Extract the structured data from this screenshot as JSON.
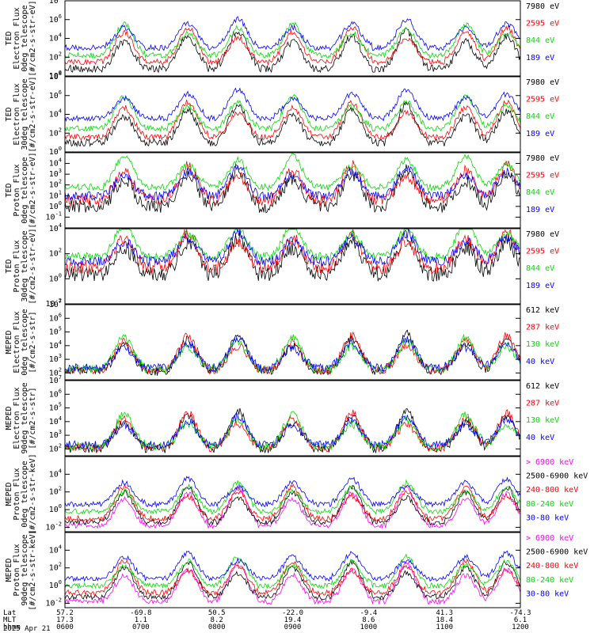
{
  "figure": {
    "time_axis": {
      "rows": [
        {
          "label": "Lat",
          "values": [
            "57.2",
            "-69.8",
            "50.5",
            "-22.0",
            "-9.4",
            "41.3",
            "-74.3"
          ]
        },
        {
          "label": "MLT",
          "values": [
            "17.3",
            "1.1",
            "8.2",
            "19.4",
            "8.6",
            "18.4",
            "6.1"
          ]
        },
        {
          "label": "hhmm",
          "values": [
            "0600",
            "0700",
            "0800",
            "0900",
            "1000",
            "1100",
            "1200"
          ]
        }
      ],
      "date": "2025 Apr 21"
    }
  },
  "chart_data": [
    {
      "type": "line",
      "ylabel": "TED\nElectron Flux\n0deg telescope\n[#/cm2-s-str-eV]",
      "y_scale": "log",
      "y_exp_range": [
        0,
        8
      ],
      "y_tick_exps": [
        0,
        2,
        4,
        6,
        8
      ],
      "series": [
        {
          "name": "7980 eV",
          "color": "#000000",
          "seed": 11,
          "base": 0.8,
          "noise": 0.4
        },
        {
          "name": "2595 eV",
          "color": "#ff0000",
          "seed": 12,
          "base": 1.5,
          "noise": 0.3
        },
        {
          "name": "844 eV",
          "color": "#00dd00",
          "seed": 13,
          "base": 2.2,
          "noise": 0.3
        },
        {
          "name": "189 eV",
          "color": "#0000ff",
          "seed": 14,
          "base": 3.0,
          "noise": 0.3
        }
      ]
    },
    {
      "type": "line",
      "ylabel": "TED\nElectron Flux\n30deg telescope\n[#/cm2-s-str-eV]",
      "y_scale": "log",
      "y_exp_range": [
        0,
        8
      ],
      "y_tick_exps": [
        0,
        2,
        4,
        6,
        8
      ],
      "series": [
        {
          "name": "7980 eV",
          "color": "#000000",
          "seed": 21,
          "base": 1.0,
          "noise": 0.4
        },
        {
          "name": "2595 eV",
          "color": "#ff0000",
          "seed": 22,
          "base": 1.6,
          "noise": 0.3
        },
        {
          "name": "844 eV",
          "color": "#00dd00",
          "seed": 23,
          "base": 2.5,
          "noise": 0.3
        },
        {
          "name": "189 eV",
          "color": "#0000ff",
          "seed": 24,
          "base": 3.6,
          "noise": 0.3
        }
      ]
    },
    {
      "type": "line",
      "ylabel": "TED\nProton Flux\n0deg telescope\n[#/cm2-s-str-eV]",
      "y_scale": "log",
      "y_exp_range": [
        -2,
        5
      ],
      "y_tick_exps": [
        -1,
        0,
        1,
        2,
        3,
        4
      ],
      "series": [
        {
          "name": "7980 eV",
          "color": "#000000",
          "seed": 31,
          "base": 0.0,
          "noise": 0.6
        },
        {
          "name": "2595 eV",
          "color": "#ff0000",
          "seed": 32,
          "base": 0.6,
          "noise": 0.5
        },
        {
          "name": "844 eV",
          "color": "#00dd00",
          "seed": 33,
          "base": 1.8,
          "noise": 0.3
        },
        {
          "name": "189 eV",
          "color": "#0000ff",
          "seed": 34,
          "base": 1.0,
          "noise": 0.4
        }
      ]
    },
    {
      "type": "line",
      "ylabel": "TED\nProton Flux\n30deg telescope\n[#/cm2-s-str-eV]",
      "y_scale": "log",
      "y_exp_range": [
        -2,
        4
      ],
      "y_tick_exps": [
        -2,
        0,
        2,
        4
      ],
      "series": [
        {
          "name": "7980 eV",
          "color": "#000000",
          "seed": 41,
          "base": 0.4,
          "noise": 0.6
        },
        {
          "name": "2595 eV",
          "color": "#ff0000",
          "seed": 42,
          "base": 0.9,
          "noise": 0.5
        },
        {
          "name": "844 eV",
          "color": "#00dd00",
          "seed": 43,
          "base": 1.8,
          "noise": 0.3
        },
        {
          "name": "189 eV",
          "color": "#0000ff",
          "seed": 44,
          "base": 1.4,
          "noise": 0.4
        }
      ]
    },
    {
      "type": "line",
      "ylabel": "MEPED\nElectron Flux\n0deg telescope\n[#/cm2-s-str]",
      "y_scale": "log",
      "y_exp_range": [
        1.5,
        7
      ],
      "y_tick_exps": [
        2,
        3,
        4,
        5,
        6,
        7
      ],
      "series": [
        {
          "name": "612 keV",
          "color": "#000000",
          "seed": 51,
          "base": 2.1,
          "noise": 0.3
        },
        {
          "name": "287 keV",
          "color": "#ff0000",
          "seed": 52,
          "base": 2.2,
          "noise": 0.3
        },
        {
          "name": "130 keV",
          "color": "#00dd00",
          "seed": 53,
          "base": 2.3,
          "noise": 0.3
        },
        {
          "name": "40 keV",
          "color": "#0000ff",
          "seed": 54,
          "base": 2.4,
          "noise": 0.3
        }
      ]
    },
    {
      "type": "line",
      "ylabel": "MEPED\nElectron Flux\n90deg telescope\n[#/cm2-s-str]",
      "y_scale": "log",
      "y_exp_range": [
        1.5,
        7
      ],
      "y_tick_exps": [
        2,
        3,
        4,
        5,
        6,
        7
      ],
      "series": [
        {
          "name": "612 keV",
          "color": "#000000",
          "seed": 61,
          "base": 2.0,
          "noise": 0.3
        },
        {
          "name": "287 keV",
          "color": "#ff0000",
          "seed": 62,
          "base": 2.1,
          "noise": 0.3
        },
        {
          "name": "130 keV",
          "color": "#00dd00",
          "seed": 63,
          "base": 2.2,
          "noise": 0.3
        },
        {
          "name": "40 keV",
          "color": "#0000ff",
          "seed": 64,
          "base": 2.3,
          "noise": 0.3
        }
      ]
    },
    {
      "type": "line",
      "ylabel": "MEPED\nProton Flux\n0deg telescope\n[#/cm2-s-str-keV]",
      "y_scale": "log",
      "y_exp_range": [
        -2.5,
        6
      ],
      "y_tick_exps": [
        -2,
        0,
        2,
        4
      ],
      "series": [
        {
          "name": "> 6900 keV",
          "color": "#ff00ff",
          "seed": 71,
          "base": -1.8,
          "noise": 0.3
        },
        {
          "name": "2500-6900 keV",
          "color": "#000000",
          "seed": 72,
          "base": -1.4,
          "noise": 0.3
        },
        {
          "name": "240-800 keV",
          "color": "#ff0000",
          "seed": 73,
          "base": -1.0,
          "noise": 0.3
        },
        {
          "name": "80-240 keV",
          "color": "#00dd00",
          "seed": 74,
          "base": -0.2,
          "noise": 0.3
        },
        {
          "name": "30-80 keV",
          "color": "#0000ff",
          "seed": 75,
          "base": 0.6,
          "noise": 0.3
        }
      ]
    },
    {
      "type": "line",
      "ylabel": "MEPED\nProton Flux\n90deg telescope\n[#/cm2-s-str-keV]",
      "y_scale": "log",
      "y_exp_range": [
        -2.5,
        6
      ],
      "y_tick_exps": [
        -2,
        0,
        2,
        4
      ],
      "series": [
        {
          "name": "> 6900 keV",
          "color": "#ff00ff",
          "seed": 81,
          "base": -1.8,
          "noise": 0.3
        },
        {
          "name": "2500-6900 keV",
          "color": "#000000",
          "seed": 82,
          "base": -1.3,
          "noise": 0.3
        },
        {
          "name": "240-800 keV",
          "color": "#ff0000",
          "seed": 83,
          "base": -0.8,
          "noise": 0.3
        },
        {
          "name": "80-240 keV",
          "color": "#00dd00",
          "seed": 84,
          "base": 0.0,
          "noise": 0.3
        },
        {
          "name": "30-80 keV",
          "color": "#0000ff",
          "seed": 85,
          "base": 0.8,
          "noise": 0.3
        }
      ]
    }
  ]
}
